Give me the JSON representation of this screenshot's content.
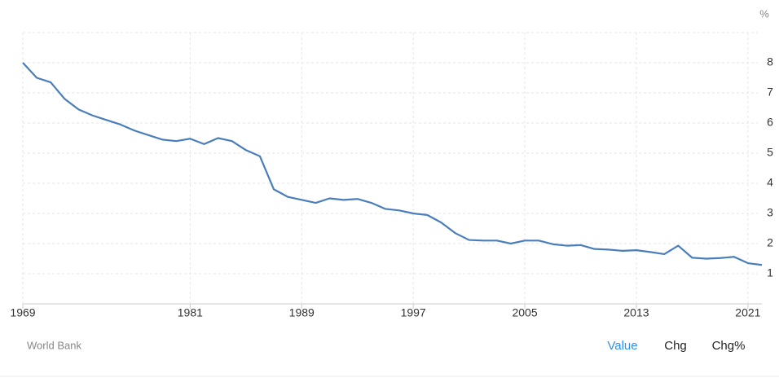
{
  "chart_data": {
    "type": "line",
    "unit": "%",
    "x": [
      1969,
      1970,
      1971,
      1972,
      1973,
      1974,
      1975,
      1976,
      1977,
      1978,
      1979,
      1980,
      1981,
      1982,
      1983,
      1984,
      1985,
      1986,
      1987,
      1988,
      1989,
      1990,
      1991,
      1992,
      1993,
      1994,
      1995,
      1996,
      1997,
      1998,
      1999,
      2000,
      2001,
      2002,
      2003,
      2004,
      2005,
      2006,
      2007,
      2008,
      2009,
      2010,
      2011,
      2012,
      2013,
      2014,
      2015,
      2016,
      2017,
      2018,
      2019,
      2020,
      2021,
      2022
    ],
    "series": [
      {
        "color": "#4a7ebb",
        "values": [
          8.0,
          7.5,
          7.35,
          6.8,
          6.45,
          6.25,
          6.1,
          5.95,
          5.75,
          5.6,
          5.45,
          5.4,
          5.48,
          5.3,
          5.5,
          5.4,
          5.1,
          4.9,
          3.8,
          3.55,
          3.45,
          3.35,
          3.5,
          3.45,
          3.48,
          3.35,
          3.15,
          3.1,
          3.0,
          2.95,
          2.7,
          2.35,
          2.12,
          2.1,
          2.1,
          2.0,
          2.1,
          2.1,
          1.98,
          1.93,
          1.95,
          1.82,
          1.8,
          1.76,
          1.78,
          1.72,
          1.65,
          1.93,
          1.53,
          1.5,
          1.52,
          1.56,
          1.35,
          1.29
        ]
      }
    ],
    "xlim": [
      1969,
      2022
    ],
    "xticks": [
      1969,
      1981,
      1989,
      1997,
      2005,
      2013,
      2021
    ],
    "ylim": [
      0,
      9
    ],
    "yticks": [
      1,
      2,
      3,
      4,
      5,
      6,
      7,
      8
    ],
    "grid": true,
    "source": "World Bank",
    "buttons": [
      "Value",
      "Chg",
      "Chg%"
    ]
  }
}
